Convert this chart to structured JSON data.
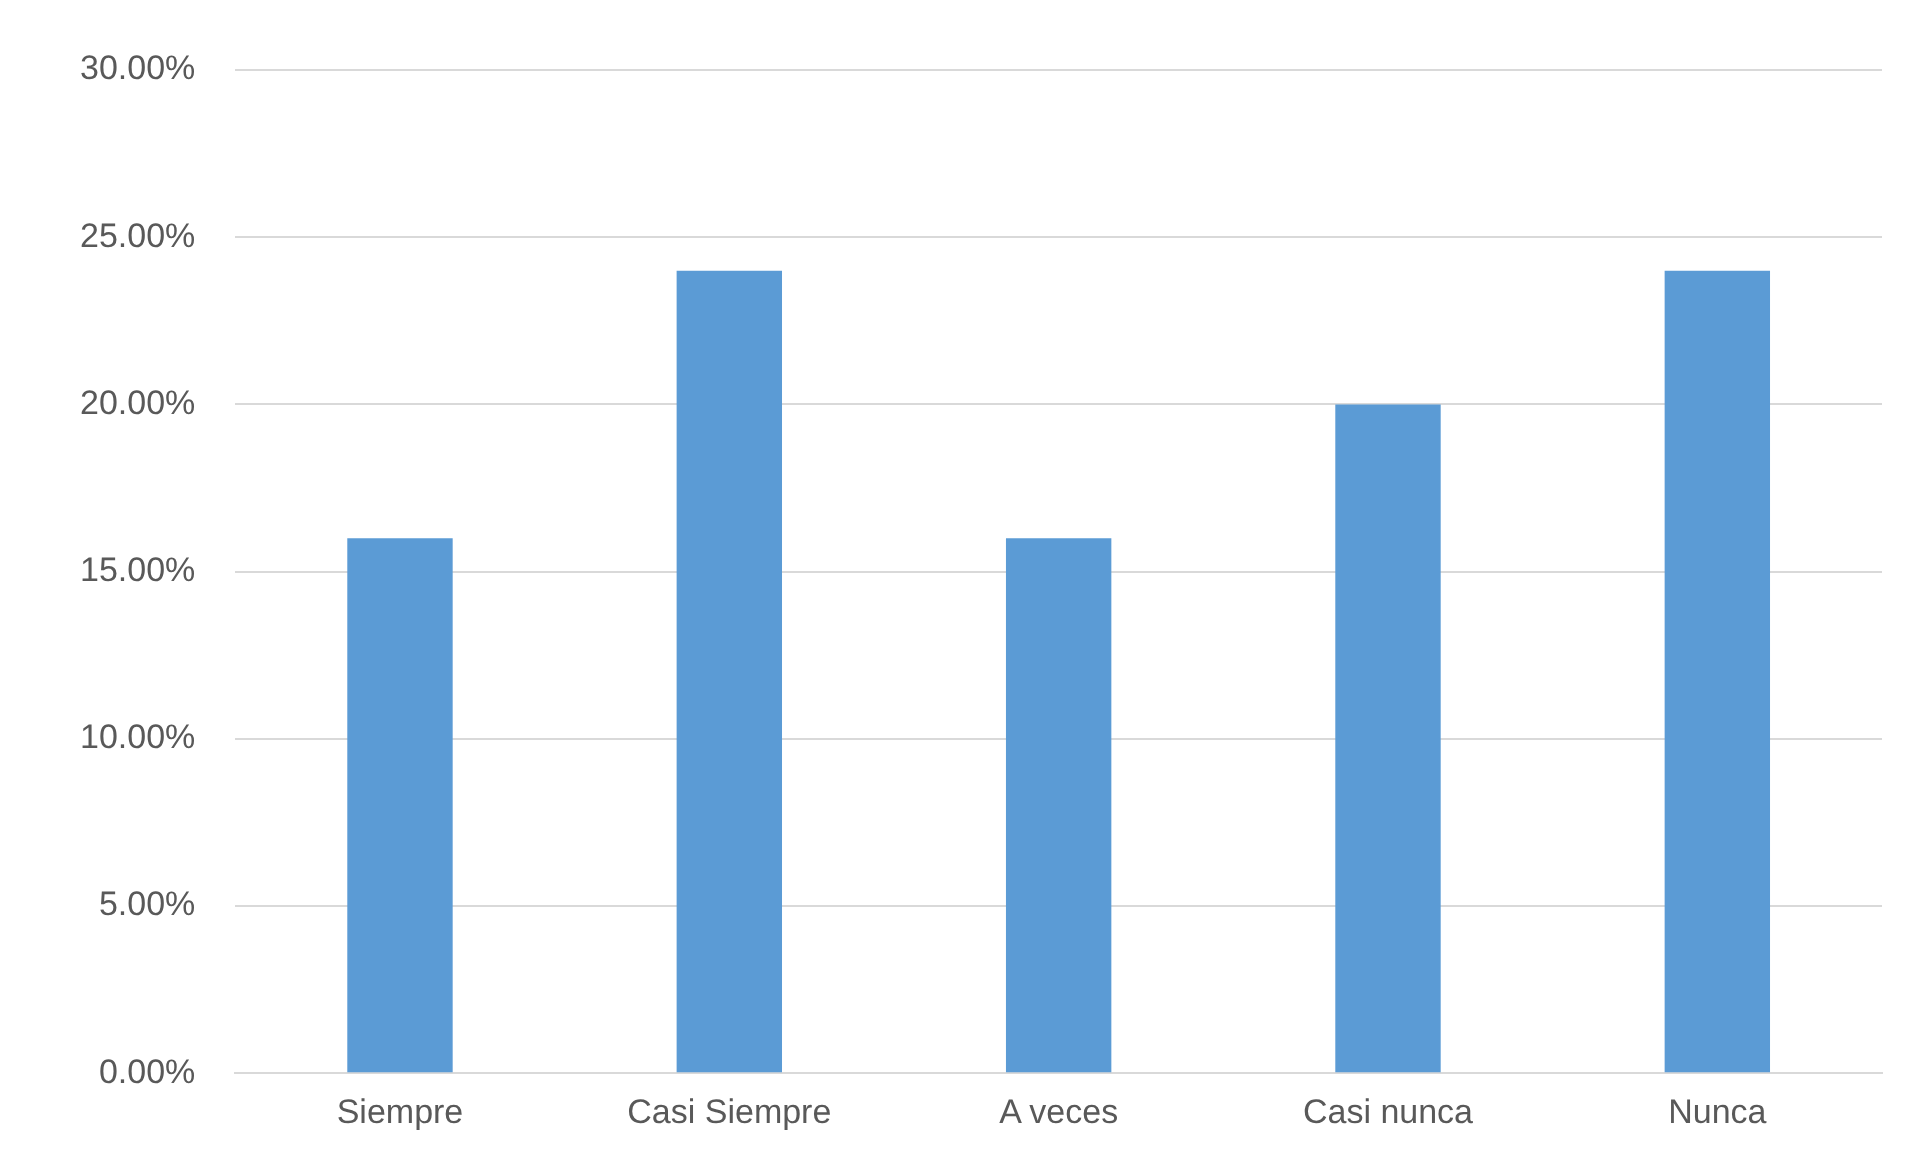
{
  "chart_data": {
    "type": "bar",
    "categories": [
      "Siempre",
      "Casi Siempre",
      "A veces",
      "Casi nunca",
      "Nunca"
    ],
    "values": [
      16,
      24,
      16,
      20,
      24
    ],
    "color": "#5b9bd5",
    "ylim": [
      0,
      30
    ],
    "yticks": [
      {
        "value": 0,
        "label": "0.00%"
      },
      {
        "value": 5,
        "label": "5.00%"
      },
      {
        "value": 10,
        "label": "10.00%"
      },
      {
        "value": 15,
        "label": "15.00%"
      },
      {
        "value": 20,
        "label": "20.00%"
      },
      {
        "value": 25,
        "label": "25.00%"
      },
      {
        "value": 30,
        "label": "30.00%"
      }
    ],
    "grid": "y",
    "legend": false
  }
}
